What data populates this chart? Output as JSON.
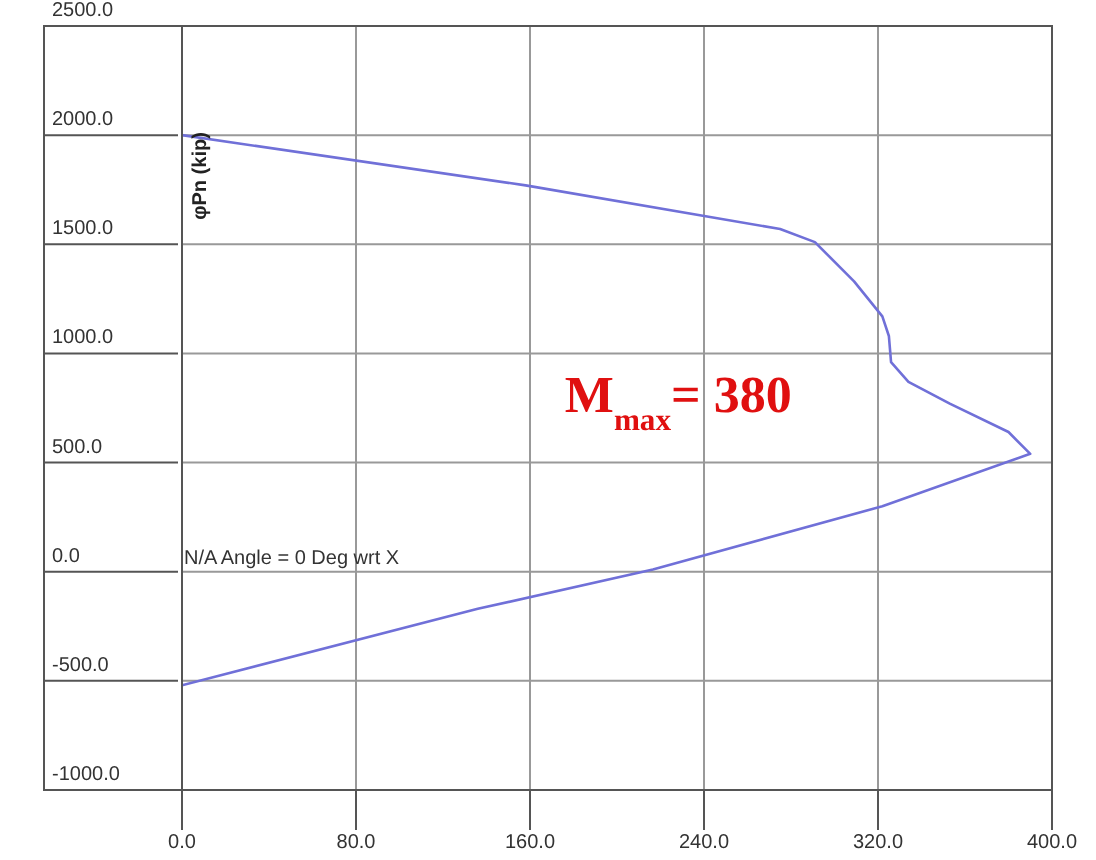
{
  "chart_data": {
    "type": "line",
    "ylabel": "φPn (kip)",
    "x": [
      0,
      158,
      275,
      291,
      309,
      322,
      325,
      326,
      334,
      353,
      380,
      390,
      322,
      216.5,
      136,
      0
    ],
    "series": [
      {
        "color": "#7070d8",
        "values": [
          2000,
          1770,
          1570,
          1510,
          1330,
          1170,
          1080,
          960,
          870,
          770,
          640,
          540,
          300,
          10,
          -170,
          -520
        ]
      }
    ],
    "xlim": [
      0,
      400
    ],
    "ylim": [
      -1000,
      2500
    ],
    "xticks": [
      {
        "value": 0,
        "label": "0.0"
      },
      {
        "value": 80,
        "label": "80.0"
      },
      {
        "value": 160,
        "label": "160.0"
      },
      {
        "value": 240,
        "label": "240.0"
      },
      {
        "value": 320,
        "label": "320.0"
      },
      {
        "value": 400,
        "label": "400.0"
      }
    ],
    "yticks": [
      {
        "value": -1000,
        "label": "-1000.0"
      },
      {
        "value": -500,
        "label": "-500.0"
      },
      {
        "value": 0,
        "label": "0.0"
      },
      {
        "value": 500,
        "label": "500.0"
      },
      {
        "value": 1000,
        "label": "1000.0"
      },
      {
        "value": 1500,
        "label": "1500.0"
      },
      {
        "value": 2000,
        "label": "2000.0"
      },
      {
        "value": 2500,
        "label": "2500.0"
      }
    ],
    "grid": true,
    "marker": "none",
    "line_style": "solid",
    "annotations": [
      "M$_{max}$= 380",
      "N/A Angle = 0 Deg wrt X"
    ]
  }
}
